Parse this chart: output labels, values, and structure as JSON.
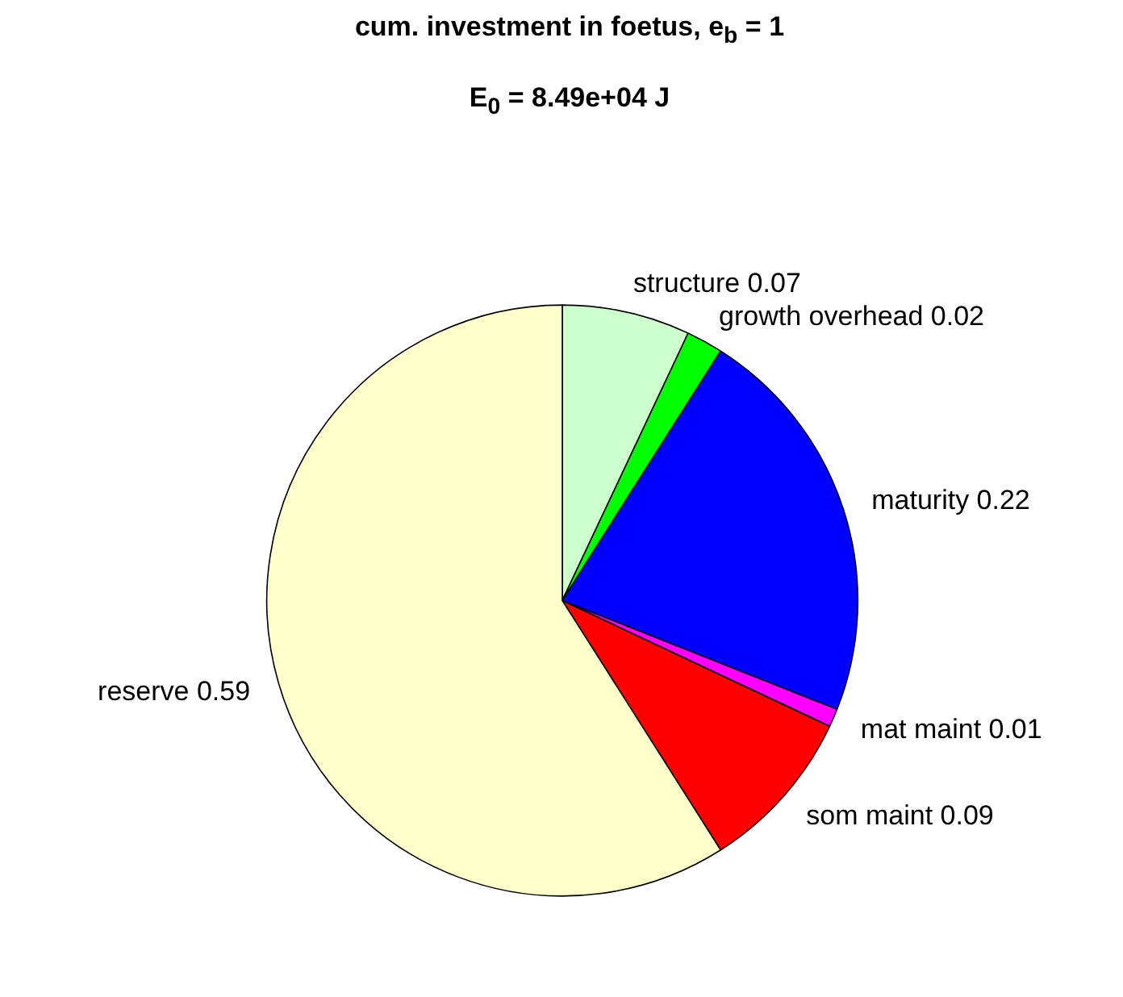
{
  "chart_data": {
    "type": "pie",
    "title": "cum. investment in foetus, e$_{b}$ = 1",
    "subtitle": "E$_{0}$ = 8.49e+04 J",
    "categories": [
      "structure 0.07",
      "growth overhead 0.02",
      "maturity 0.22",
      "mat maint 0.01",
      "som maint 0.09",
      "reserve 0.59"
    ],
    "values": [
      0.07,
      0.02,
      0.22,
      0.01,
      0.09,
      0.59
    ],
    "colors": [
      "#ccffcc",
      "#00ff00",
      "#0000ff",
      "#ff00ff",
      "#ff0000",
      "#ffffcc"
    ]
  }
}
